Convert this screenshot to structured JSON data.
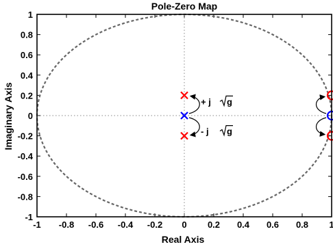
{
  "chart_data": {
    "type": "scatter",
    "title": "Pole-Zero Map",
    "xlabel": "Real Axis",
    "ylabel": "Imaginary Axis",
    "xlim": [
      -1,
      1
    ],
    "ylim": [
      -1,
      1
    ],
    "xticks": [
      "-1",
      "-0.8",
      "-0.6",
      "-0.4",
      "-0.2",
      "0",
      "0.2",
      "0.4",
      "0.6",
      "0.8",
      "1"
    ],
    "yticks": [
      "1",
      "0.8",
      "0.6",
      "0.4",
      "0.2",
      "0",
      "-0.2",
      "-0.4",
      "-0.6",
      "-0.8",
      "-1"
    ],
    "grid": false,
    "unit_circle": true,
    "poles": [
      {
        "x": 0,
        "y": 0.2,
        "color": "#ff0000"
      },
      {
        "x": 0,
        "y": 0,
        "color": "#0000ff"
      },
      {
        "x": 0,
        "y": -0.2,
        "color": "#ff0000"
      }
    ],
    "zeros": [
      {
        "x": 1,
        "y": 0.2,
        "color": "#ff0000"
      },
      {
        "x": 1,
        "y": 0,
        "color": "#0000ff"
      },
      {
        "x": 1,
        "y": -0.2,
        "color": "#ff0000"
      }
    ],
    "annotations": {
      "plus": {
        "sign": "+ j",
        "sym": "g"
      },
      "minus": {
        "sign": "- j",
        "sym": "g"
      }
    },
    "colors": {
      "red": "#ff0000",
      "blue": "#0000ff",
      "circle": "#666666",
      "axes": "#000000"
    }
  }
}
